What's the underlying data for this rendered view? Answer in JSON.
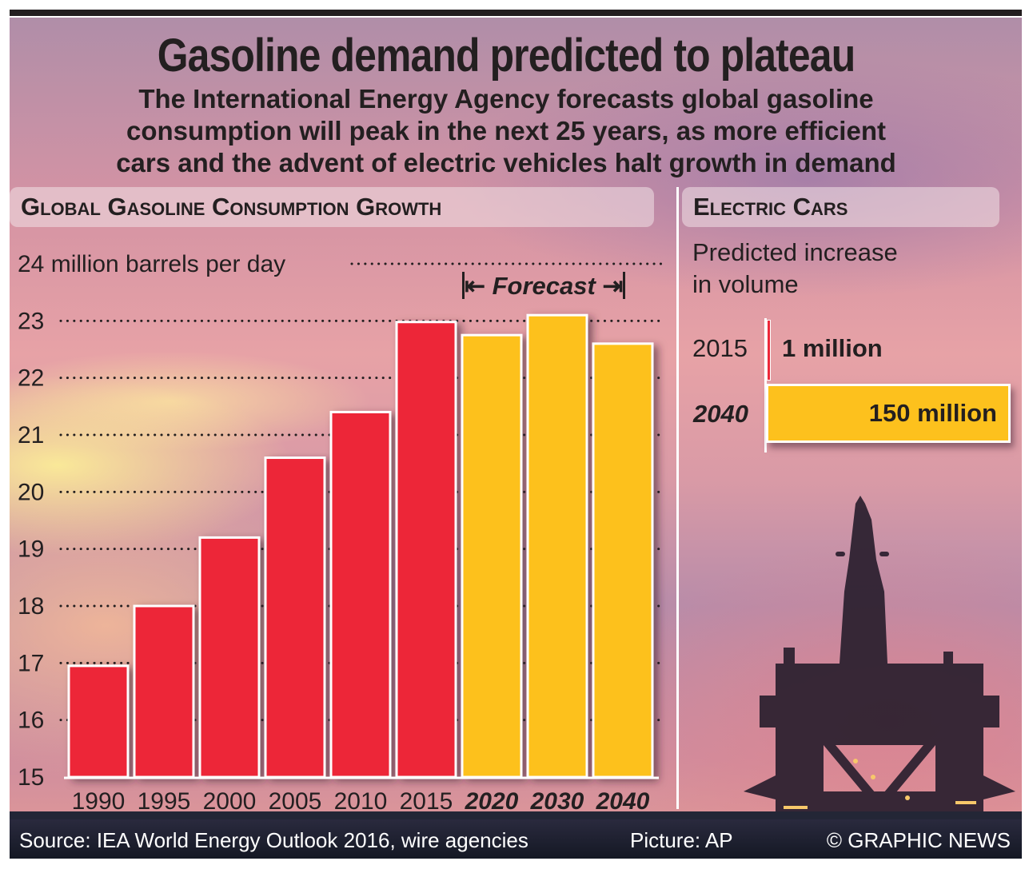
{
  "header": {
    "title": "Gasoline demand predicted to plateau",
    "subtitle_lines": [
      "The International Energy Agency forecasts global gasoline",
      "consumption will peak in the next 25 years, as more efficient",
      "cars and the advent of electric vehicles halt growth in demand"
    ]
  },
  "left_panel": {
    "heading": "Global Gasoline Consumption Growth",
    "forecast_label": "Forecast",
    "forecast_left_arrow": "⇤",
    "forecast_right_arrow": "⇥"
  },
  "right_panel": {
    "heading": "Electric Cars",
    "description_lines": [
      "Predicted increase",
      "in volume"
    ],
    "rows": [
      {
        "year": "2015",
        "value_label": "1 million",
        "value": 1,
        "forecast": false
      },
      {
        "year": "2040",
        "value_label": "150 million",
        "value": 150,
        "forecast": true
      }
    ]
  },
  "footer": {
    "source": "Source: IEA World Energy Outlook 2016, wire agencies",
    "picture": "Picture: AP",
    "copyright": "© GRAPHIC NEWS"
  },
  "colors": {
    "actual": "#ed2739",
    "forecast": "#fdc11d",
    "text": "#231f20",
    "bar_border": "#ffffff"
  },
  "chart_data": [
    {
      "type": "bar",
      "title": "Global Gasoline Consumption Growth",
      "ylabel": "million barrels per day",
      "xlabel": "",
      "categories": [
        "1990",
        "1995",
        "2000",
        "2005",
        "2010",
        "2015",
        "2020",
        "2030",
        "2040"
      ],
      "values": [
        16.95,
        18.0,
        19.2,
        20.6,
        21.4,
        22.98,
        22.75,
        23.1,
        22.6
      ],
      "forecast": [
        false,
        false,
        false,
        false,
        false,
        false,
        true,
        true,
        true
      ],
      "ylim": [
        15,
        24
      ],
      "yticks": [
        15,
        16,
        17,
        18,
        19,
        20,
        21,
        22,
        23,
        24
      ],
      "ytick_labels": [
        "15",
        "16",
        "17",
        "18",
        "19",
        "20",
        "21",
        "22",
        "23",
        "24 million barrels per day"
      ],
      "grid": "dotted horizontal",
      "annotations": [
        "Forecast (2020–2040)"
      ]
    },
    {
      "type": "bar",
      "orientation": "horizontal",
      "title": "Electric Cars",
      "subtitle": "Predicted increase in volume",
      "categories": [
        "2015",
        "2040"
      ],
      "values": [
        1,
        150
      ],
      "value_labels": [
        "1 million",
        "150 million"
      ],
      "units": "million vehicles"
    }
  ]
}
